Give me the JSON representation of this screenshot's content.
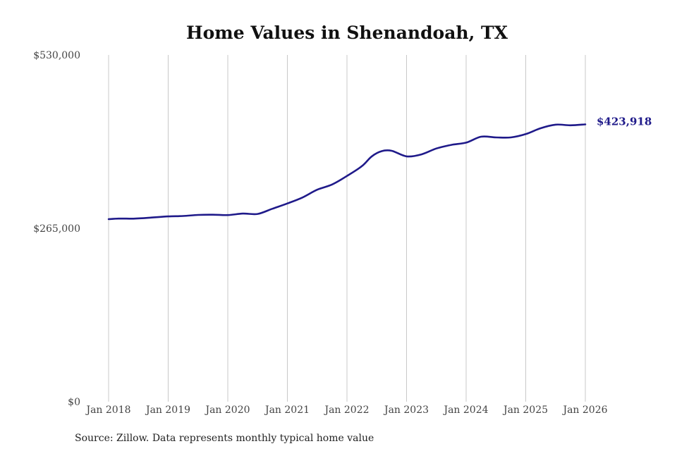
{
  "chart_data": {
    "type": "line",
    "title": "Home Values in Shenandoah, TX",
    "xlabel": "",
    "ylabel": "",
    "ylim": [
      0,
      530000
    ],
    "y_ticks": [
      {
        "value": 0,
        "label": "$0"
      },
      {
        "value": 265000,
        "label": "$265,000"
      },
      {
        "value": 530000,
        "label": "$530,000"
      }
    ],
    "x_range": [
      "2018-01",
      "2026-01"
    ],
    "x_ticks": [
      "Jan 2018",
      "Jan 2019",
      "Jan 2020",
      "Jan 2021",
      "Jan 2022",
      "Jan 2023",
      "Jan 2024",
      "Jan 2025",
      "Jan 2026"
    ],
    "grid": "vertical",
    "legend": "none",
    "series": [
      {
        "color": "#1f1a8a",
        "end_label": "$423,918",
        "points": [
          {
            "x": "2018-01",
            "y": 279000
          },
          {
            "x": "2018-03",
            "y": 279900
          },
          {
            "x": "2018-06",
            "y": 279800
          },
          {
            "x": "2018-09",
            "y": 281000
          },
          {
            "x": "2019-01",
            "y": 283200
          },
          {
            "x": "2019-04",
            "y": 283800
          },
          {
            "x": "2019-07",
            "y": 285500
          },
          {
            "x": "2019-10",
            "y": 285800
          },
          {
            "x": "2020-01",
            "y": 285200
          },
          {
            "x": "2020-04",
            "y": 287500
          },
          {
            "x": "2020-07",
            "y": 287000
          },
          {
            "x": "2020-10",
            "y": 295000
          },
          {
            "x": "2021-01",
            "y": 303000
          },
          {
            "x": "2021-04",
            "y": 312000
          },
          {
            "x": "2021-07",
            "y": 324000
          },
          {
            "x": "2021-10",
            "y": 332000
          },
          {
            "x": "2022-01",
            "y": 345000
          },
          {
            "x": "2022-04",
            "y": 360000
          },
          {
            "x": "2022-06",
            "y": 375000
          },
          {
            "x": "2022-08",
            "y": 383000
          },
          {
            "x": "2022-10",
            "y": 383500
          },
          {
            "x": "2023-01",
            "y": 375000
          },
          {
            "x": "2023-04",
            "y": 378000
          },
          {
            "x": "2023-07",
            "y": 387000
          },
          {
            "x": "2023-10",
            "y": 392500
          },
          {
            "x": "2024-01",
            "y": 396000
          },
          {
            "x": "2024-04",
            "y": 405000
          },
          {
            "x": "2024-07",
            "y": 404000
          },
          {
            "x": "2024-10",
            "y": 404000
          },
          {
            "x": "2025-01",
            "y": 409000
          },
          {
            "x": "2025-04",
            "y": 418000
          },
          {
            "x": "2025-07",
            "y": 423500
          },
          {
            "x": "2025-10",
            "y": 422500
          },
          {
            "x": "2026-01",
            "y": 423918
          }
        ]
      }
    ],
    "footnote": "Source: Zillow. Data represents monthly typical home value"
  }
}
